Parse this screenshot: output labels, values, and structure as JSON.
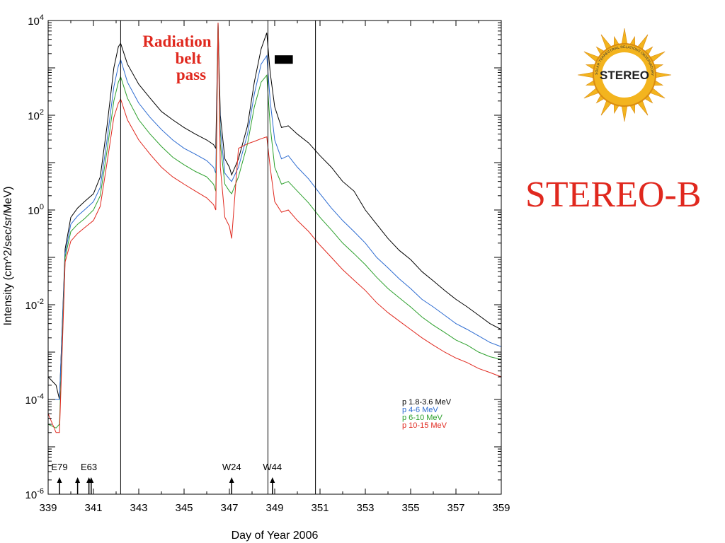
{
  "title": "STEREO-B",
  "logo": {
    "text": "STEREO",
    "ring_text": "SOLAR TERRESTRIAL RELATIONS OBSERVATORY",
    "color_sun": "#f3b41e",
    "color_core": "#ffffff"
  },
  "annotation": {
    "lines": [
      "Radiation",
      "belt",
      "pass"
    ],
    "color": "#e0281e"
  },
  "chart_data": {
    "type": "line",
    "xlabel": "Day of Year 2006",
    "ylabel": "Intensity (cm^2/sec/sr/MeV)",
    "xlim": [
      339,
      359
    ],
    "ylim": [
      1e-06,
      10000.0
    ],
    "yscale": "log",
    "x_ticks": [
      "339",
      "341",
      "343",
      "345",
      "347",
      "349",
      "351",
      "353",
      "355",
      "357",
      "359"
    ],
    "y_ticks": [
      {
        "base": "10",
        "exp": "4",
        "value": 10000.0
      },
      {
        "base": "10",
        "exp": "2",
        "value": 100.0
      },
      {
        "base": "10",
        "exp": "0",
        "value": 1
      },
      {
        "base": "10",
        "exp": "-2",
        "value": 0.01
      },
      {
        "base": "10",
        "exp": "-4",
        "value": 0.0001
      },
      {
        "base": "10",
        "exp": "-6",
        "value": 1e-06
      }
    ],
    "vertical_lines": [
      342.2,
      348.7,
      350.8
    ],
    "events": [
      {
        "label": "E79",
        "day": 339.5
      },
      {
        "label": "",
        "day": 340.3
      },
      {
        "label": "E63",
        "day": 340.8
      },
      {
        "label": "",
        "day": 340.9
      },
      {
        "label": "W24",
        "day": 347.1
      },
      {
        "label": "W44",
        "day": 348.9
      }
    ],
    "black_bar": {
      "start": 349.0,
      "end": 349.8,
      "value": 1500
    },
    "series": [
      {
        "name": "p 1.8-3.6 MeV",
        "color": "#000000",
        "points": [
          [
            339.0,
            0.0003
          ],
          [
            339.35,
            0.0002
          ],
          [
            339.5,
            0.0001
          ],
          [
            339.75,
            0.15
          ],
          [
            340.0,
            0.7
          ],
          [
            340.3,
            1.1
          ],
          [
            340.6,
            1.5
          ],
          [
            341.0,
            2.2
          ],
          [
            341.3,
            5
          ],
          [
            341.6,
            60
          ],
          [
            341.9,
            1000
          ],
          [
            342.1,
            2800
          ],
          [
            342.2,
            3300
          ],
          [
            342.5,
            1200
          ],
          [
            343.0,
            450
          ],
          [
            343.5,
            230
          ],
          [
            344.0,
            120
          ],
          [
            344.5,
            80
          ],
          [
            345.0,
            55
          ],
          [
            345.5,
            40
          ],
          [
            346.0,
            30
          ],
          [
            346.3,
            24
          ],
          [
            346.4,
            20
          ],
          [
            346.5,
            9000
          ],
          [
            346.6,
            100
          ],
          [
            346.8,
            12
          ],
          [
            347.0,
            8
          ],
          [
            347.1,
            5.5
          ],
          [
            347.4,
            12
          ],
          [
            347.8,
            60
          ],
          [
            348.1,
            500
          ],
          [
            348.4,
            2500
          ],
          [
            348.65,
            5500
          ],
          [
            348.8,
            800
          ],
          [
            349.0,
            150
          ],
          [
            349.3,
            55
          ],
          [
            349.6,
            60
          ],
          [
            350.0,
            40
          ],
          [
            350.5,
            26
          ],
          [
            351.0,
            14
          ],
          [
            351.5,
            8
          ],
          [
            352.0,
            4
          ],
          [
            352.5,
            2.5
          ],
          [
            353.0,
            1.0
          ],
          [
            353.5,
            0.5
          ],
          [
            354.0,
            0.25
          ],
          [
            354.5,
            0.14
          ],
          [
            355.0,
            0.09
          ],
          [
            355.5,
            0.05
          ],
          [
            356.0,
            0.032
          ],
          [
            356.5,
            0.02
          ],
          [
            357.0,
            0.013
          ],
          [
            357.5,
            0.009
          ],
          [
            358.0,
            0.006
          ],
          [
            358.5,
            0.004
          ],
          [
            359.0,
            0.003
          ]
        ]
      },
      {
        "name": "p 4-6 MeV",
        "color": "#2c6bd1",
        "points": [
          [
            339.0,
            0.0001
          ],
          [
            339.35,
            0.0001
          ],
          [
            339.5,
            0.0001
          ],
          [
            339.75,
            0.12
          ],
          [
            340.0,
            0.5
          ],
          [
            340.3,
            0.75
          ],
          [
            340.6,
            1.0
          ],
          [
            341.0,
            1.5
          ],
          [
            341.3,
            3
          ],
          [
            341.6,
            30
          ],
          [
            341.9,
            400
          ],
          [
            342.1,
            1100
          ],
          [
            342.2,
            1500
          ],
          [
            342.5,
            500
          ],
          [
            343.0,
            180
          ],
          [
            343.5,
            90
          ],
          [
            344.0,
            50
          ],
          [
            344.5,
            30
          ],
          [
            345.0,
            20
          ],
          [
            345.5,
            15
          ],
          [
            346.0,
            11
          ],
          [
            346.3,
            8
          ],
          [
            346.4,
            6
          ],
          [
            346.5,
            9000
          ],
          [
            346.6,
            50
          ],
          [
            346.8,
            6
          ],
          [
            347.0,
            4.5
          ],
          [
            347.1,
            4
          ],
          [
            347.4,
            8
          ],
          [
            347.8,
            40
          ],
          [
            348.1,
            280
          ],
          [
            348.4,
            1200
          ],
          [
            348.65,
            1800
          ],
          [
            348.8,
            200
          ],
          [
            349.0,
            30
          ],
          [
            349.3,
            12
          ],
          [
            349.6,
            14
          ],
          [
            350.0,
            8
          ],
          [
            350.5,
            4.5
          ],
          [
            351.0,
            2.2
          ],
          [
            351.5,
            1.1
          ],
          [
            352.0,
            0.6
          ],
          [
            352.5,
            0.35
          ],
          [
            353.0,
            0.2
          ],
          [
            353.5,
            0.1
          ],
          [
            354.0,
            0.06
          ],
          [
            354.5,
            0.035
          ],
          [
            355.0,
            0.022
          ],
          [
            355.5,
            0.013
          ],
          [
            356.0,
            0.009
          ],
          [
            356.5,
            0.006
          ],
          [
            357.0,
            0.004
          ],
          [
            357.5,
            0.003
          ],
          [
            358.0,
            0.0022
          ],
          [
            358.5,
            0.0016
          ],
          [
            359.0,
            0.0013
          ]
        ]
      },
      {
        "name": "p 6-10 MeV",
        "color": "#2ca02c",
        "points": [
          [
            339.0,
            3e-05
          ],
          [
            339.35,
            2.5e-05
          ],
          [
            339.5,
            3e-05
          ],
          [
            339.75,
            0.1
          ],
          [
            340.0,
            0.35
          ],
          [
            340.3,
            0.5
          ],
          [
            340.6,
            0.65
          ],
          [
            341.0,
            1.0
          ],
          [
            341.3,
            2
          ],
          [
            341.6,
            18
          ],
          [
            341.9,
            200
          ],
          [
            342.1,
            500
          ],
          [
            342.2,
            650
          ],
          [
            342.5,
            230
          ],
          [
            343.0,
            80
          ],
          [
            343.5,
            40
          ],
          [
            344.0,
            22
          ],
          [
            344.5,
            13
          ],
          [
            345.0,
            9
          ],
          [
            345.5,
            6.5
          ],
          [
            346.0,
            5
          ],
          [
            346.3,
            3.5
          ],
          [
            346.4,
            2.5
          ],
          [
            346.5,
            9000
          ],
          [
            346.6,
            25
          ],
          [
            346.8,
            3.5
          ],
          [
            347.0,
            2.5
          ],
          [
            347.1,
            2.2
          ],
          [
            347.4,
            5
          ],
          [
            347.8,
            25
          ],
          [
            348.1,
            150
          ],
          [
            348.4,
            500
          ],
          [
            348.65,
            700
          ],
          [
            348.8,
            60
          ],
          [
            349.0,
            8
          ],
          [
            349.3,
            3.5
          ],
          [
            349.6,
            4
          ],
          [
            350.0,
            2.5
          ],
          [
            350.5,
            1.4
          ],
          [
            351.0,
            0.7
          ],
          [
            351.5,
            0.38
          ],
          [
            352.0,
            0.2
          ],
          [
            352.5,
            0.12
          ],
          [
            353.0,
            0.07
          ],
          [
            353.5,
            0.038
          ],
          [
            354.0,
            0.022
          ],
          [
            354.5,
            0.014
          ],
          [
            355.0,
            0.009
          ],
          [
            355.5,
            0.0055
          ],
          [
            356.0,
            0.0037
          ],
          [
            356.5,
            0.0026
          ],
          [
            357.0,
            0.0018
          ],
          [
            357.5,
            0.0014
          ],
          [
            358.0,
            0.001
          ],
          [
            358.5,
            0.0008
          ],
          [
            359.0,
            0.0007
          ]
        ]
      },
      {
        "name": "p 10-15 MeV",
        "color": "#e0281e",
        "points": [
          [
            339.0,
            5e-05
          ],
          [
            339.35,
            2e-05
          ],
          [
            339.5,
            2e-05
          ],
          [
            339.75,
            0.08
          ],
          [
            340.0,
            0.22
          ],
          [
            340.3,
            0.32
          ],
          [
            340.6,
            0.42
          ],
          [
            341.0,
            0.6
          ],
          [
            341.3,
            1.2
          ],
          [
            341.6,
            10
          ],
          [
            341.9,
            90
          ],
          [
            342.1,
            180
          ],
          [
            342.2,
            220
          ],
          [
            342.5,
            80
          ],
          [
            343.0,
            30
          ],
          [
            343.5,
            15
          ],
          [
            344.0,
            8
          ],
          [
            344.5,
            5
          ],
          [
            345.0,
            3.5
          ],
          [
            345.5,
            2.5
          ],
          [
            346.0,
            1.8
          ],
          [
            346.3,
            1.3
          ],
          [
            346.4,
            1.0
          ],
          [
            346.5,
            9000
          ],
          [
            346.6,
            8
          ],
          [
            346.8,
            0.7
          ],
          [
            347.0,
            0.45
          ],
          [
            347.1,
            0.25
          ],
          [
            347.4,
            20
          ],
          [
            347.8,
            25
          ],
          [
            348.1,
            28
          ],
          [
            348.4,
            32
          ],
          [
            348.65,
            35
          ],
          [
            348.8,
            8
          ],
          [
            349.0,
            1.5
          ],
          [
            349.3,
            0.9
          ],
          [
            349.6,
            1.0
          ],
          [
            350.0,
            0.6
          ],
          [
            350.5,
            0.35
          ],
          [
            351.0,
            0.18
          ],
          [
            351.5,
            0.1
          ],
          [
            352.0,
            0.055
          ],
          [
            352.5,
            0.033
          ],
          [
            353.0,
            0.02
          ],
          [
            353.5,
            0.011
          ],
          [
            354.0,
            0.0068
          ],
          [
            354.5,
            0.0045
          ],
          [
            355.0,
            0.003
          ],
          [
            355.5,
            0.002
          ],
          [
            356.0,
            0.0014
          ],
          [
            356.5,
            0.001
          ],
          [
            357.0,
            0.00075
          ],
          [
            357.5,
            0.0006
          ],
          [
            358.0,
            0.00045
          ],
          [
            358.5,
            0.00037
          ],
          [
            359.0,
            0.0003
          ]
        ]
      }
    ]
  }
}
